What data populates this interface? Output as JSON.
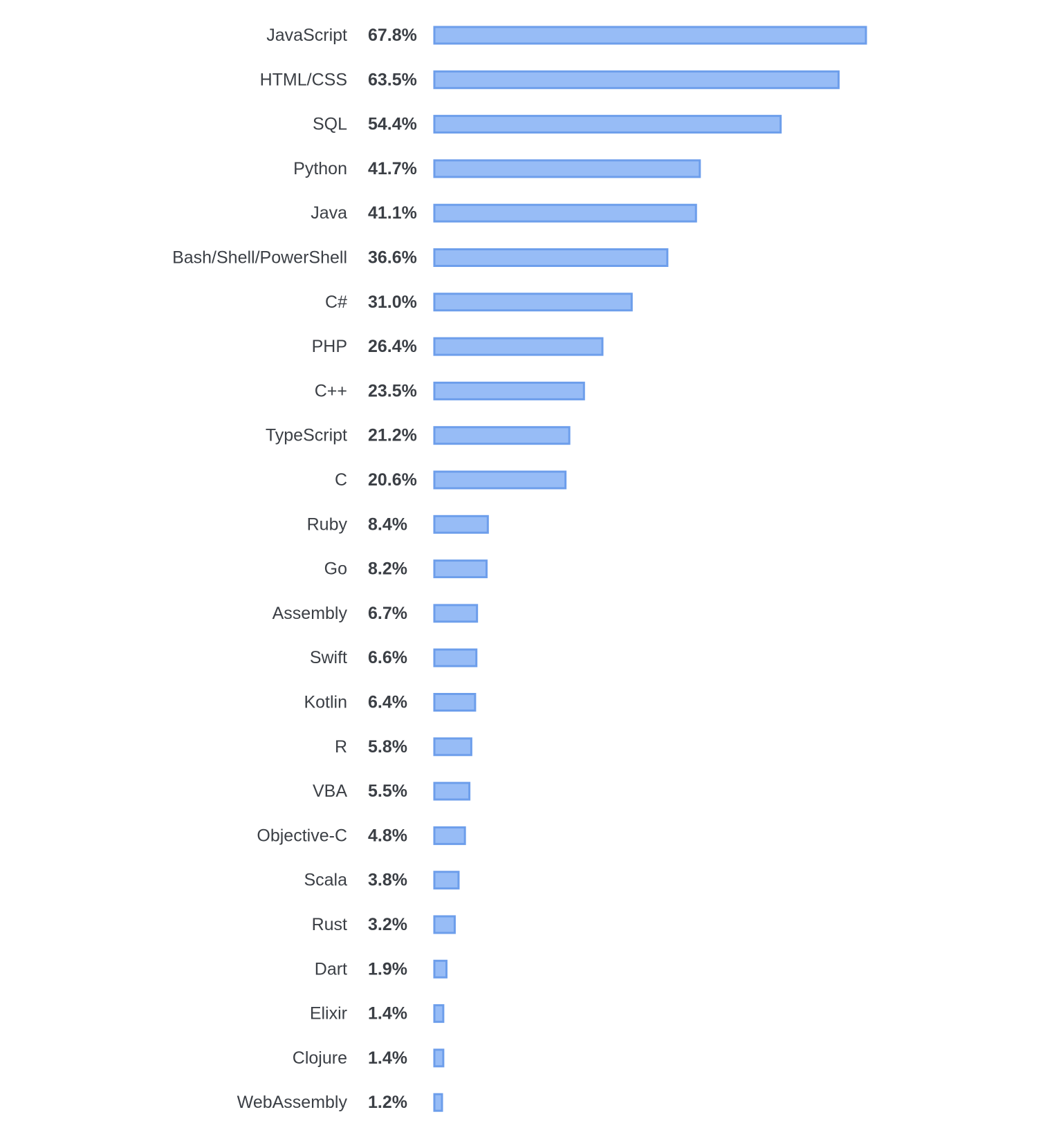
{
  "chart_data": {
    "type": "bar",
    "orientation": "horizontal",
    "categories": [
      "JavaScript",
      "HTML/CSS",
      "SQL",
      "Python",
      "Java",
      "Bash/Shell/PowerShell",
      "C#",
      "PHP",
      "C++",
      "TypeScript",
      "C",
      "Ruby",
      "Go",
      "Assembly",
      "Swift",
      "Kotlin",
      "R",
      "VBA",
      "Objective-C",
      "Scala",
      "Rust",
      "Dart",
      "Elixir",
      "Clojure",
      "WebAssembly"
    ],
    "values": [
      67.8,
      63.5,
      54.4,
      41.7,
      41.1,
      36.6,
      31.0,
      26.4,
      23.5,
      21.2,
      20.6,
      8.4,
      8.2,
      6.7,
      6.6,
      6.4,
      5.8,
      5.5,
      4.8,
      3.8,
      3.2,
      1.9,
      1.4,
      1.4,
      1.2
    ],
    "value_labels": [
      "67.8%",
      "63.5%",
      "54.4%",
      "41.7%",
      "41.1%",
      "36.6%",
      "31.0%",
      "26.4%",
      "23.5%",
      "21.2%",
      "20.6%",
      "8.4%",
      "8.2%",
      "6.7%",
      "6.6%",
      "6.4%",
      "5.8%",
      "5.5%",
      "4.8%",
      "3.8%",
      "3.2%",
      "1.9%",
      "1.4%",
      "1.4%",
      "1.2%"
    ],
    "unit": "%",
    "title": "",
    "xlabel": "",
    "ylabel": "",
    "xlim": [
      0,
      67.8
    ],
    "grid": false,
    "legend": "none",
    "colors": {
      "bar_fill": "#97bcf6",
      "bar_stroke": "#6d9eeb",
      "text": "#3b3f45"
    }
  }
}
